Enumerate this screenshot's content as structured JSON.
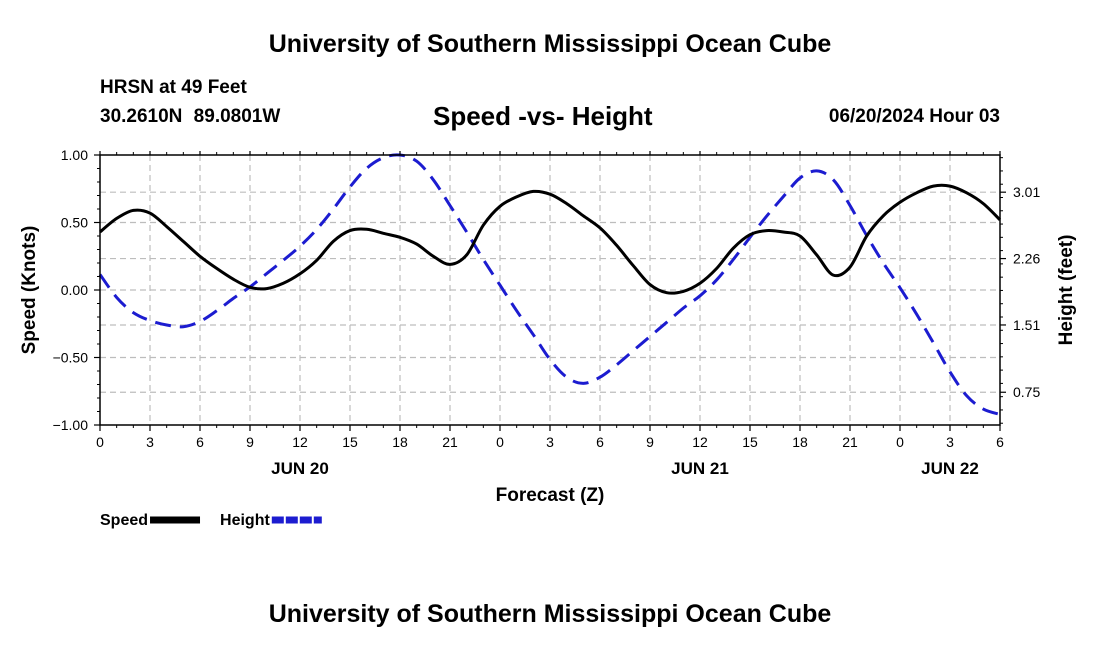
{
  "header": {
    "title": "University of Southern Mississippi Ocean Cube",
    "station": "HRSN at 49 Feet",
    "coords": "30.2610N  89.0801W",
    "datetime": "06/20/2024 Hour 03",
    "footer_title": "University of Southern Mississippi Ocean Cube"
  },
  "chart_data": {
    "type": "line",
    "title": "Speed -vs- Height",
    "xlabel": "Forecast (Z)",
    "ylabel": "Speed (Knots)",
    "y2label": "Height (feet)",
    "x_unit": "hours since JUN 20 00Z",
    "xlim": [
      0,
      54
    ],
    "ylim": [
      -1.0,
      1.0
    ],
    "y2lim": [
      0.38,
      3.43
    ],
    "x_tick_labels": [
      "0",
      "3",
      "6",
      "9",
      "12",
      "15",
      "18",
      "21",
      "0",
      "3",
      "6",
      "9",
      "12",
      "15",
      "18",
      "21",
      "0",
      "3",
      "6"
    ],
    "y_ticks": [
      -1.0,
      -0.5,
      0.0,
      0.5,
      1.0
    ],
    "y_tick_labels": [
      "−1.00",
      "−0.50",
      "0.00",
      "0.50",
      "1.00"
    ],
    "y2_ticks": [
      0.75,
      1.51,
      2.26,
      3.01
    ],
    "y2_tick_labels": [
      "0.75",
      "1.51",
      "2.26",
      "3.01"
    ],
    "day_labels": [
      {
        "label": "JUN 20",
        "hour": 12
      },
      {
        "label": "JUN 21",
        "hour": 36
      },
      {
        "label": "JUN 22",
        "hour": 51
      }
    ],
    "grid": true,
    "legend_position": "bottom-left",
    "series": [
      {
        "name": "Speed",
        "axis": "left",
        "color": "#000000",
        "style": "solid",
        "x": [
          0,
          1,
          2,
          3,
          4,
          5,
          6,
          7,
          8,
          9,
          10,
          11,
          12,
          13,
          14,
          15,
          16,
          17,
          18,
          19,
          20,
          21,
          22,
          23,
          24,
          25,
          26,
          27,
          28,
          29,
          30,
          31,
          32,
          33,
          34,
          35,
          36,
          37,
          38,
          39,
          40,
          41,
          42,
          43,
          44,
          45,
          46,
          47,
          48,
          49,
          50,
          51,
          52,
          53,
          54
        ],
        "values": [
          0.43,
          0.53,
          0.59,
          0.57,
          0.47,
          0.36,
          0.25,
          0.16,
          0.08,
          0.02,
          0.01,
          0.05,
          0.12,
          0.22,
          0.36,
          0.44,
          0.45,
          0.42,
          0.39,
          0.34,
          0.25,
          0.19,
          0.26,
          0.48,
          0.62,
          0.69,
          0.73,
          0.71,
          0.64,
          0.55,
          0.46,
          0.33,
          0.18,
          0.04,
          -0.02,
          -0.01,
          0.05,
          0.16,
          0.31,
          0.41,
          0.44,
          0.43,
          0.4,
          0.26,
          0.11,
          0.17,
          0.4,
          0.55,
          0.65,
          0.72,
          0.77,
          0.77,
          0.72,
          0.64,
          0.52
        ]
      },
      {
        "name": "Height",
        "axis": "right",
        "color": "#1c1cd0",
        "style": "dashed",
        "x": [
          0,
          1,
          2,
          3,
          4,
          5,
          6,
          7,
          8,
          9,
          10,
          11,
          12,
          13,
          14,
          15,
          16,
          17,
          18,
          19,
          20,
          21,
          22,
          23,
          24,
          25,
          26,
          27,
          28,
          29,
          30,
          31,
          32,
          33,
          34,
          35,
          36,
          37,
          38,
          39,
          40,
          41,
          42,
          43,
          44,
          45,
          46,
          47,
          48,
          49,
          50,
          51,
          52,
          53,
          54
        ],
        "values": [
          2.08,
          1.82,
          1.65,
          1.56,
          1.51,
          1.49,
          1.55,
          1.67,
          1.81,
          1.94,
          2.09,
          2.24,
          2.4,
          2.59,
          2.82,
          3.07,
          3.28,
          3.4,
          3.43,
          3.36,
          3.15,
          2.86,
          2.56,
          2.25,
          1.96,
          1.67,
          1.4,
          1.12,
          0.92,
          0.85,
          0.92,
          1.06,
          1.22,
          1.38,
          1.54,
          1.7,
          1.84,
          2.02,
          2.25,
          2.5,
          2.74,
          2.96,
          3.17,
          3.25,
          3.15,
          2.86,
          2.52,
          2.21,
          1.93,
          1.63,
          1.31,
          0.98,
          0.71,
          0.56,
          0.5
        ]
      }
    ]
  }
}
